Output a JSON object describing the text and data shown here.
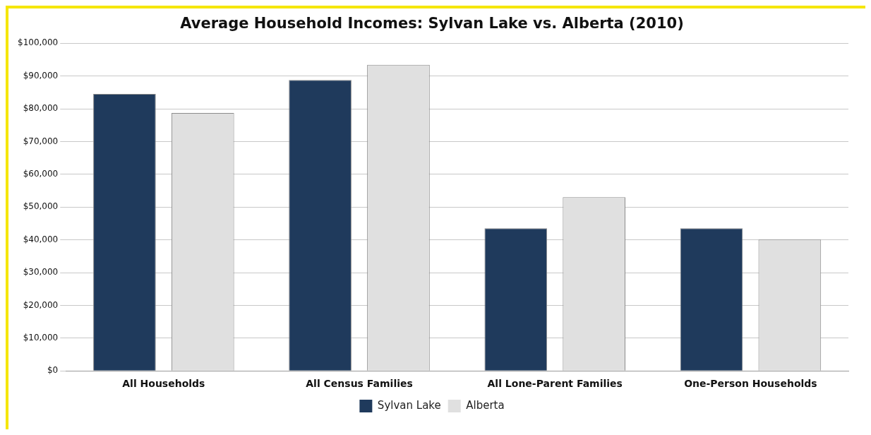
{
  "chart_data": {
    "type": "bar",
    "title": "Average Household Incomes: Sylvan Lake vs. Alberta (2010)",
    "categories": [
      "All Households",
      "All Census Families",
      "All Lone-Parent Families",
      "One-Person Households"
    ],
    "series": [
      {
        "name": "Sylvan Lake",
        "color": "#1f3a5c",
        "values": [
          84500,
          88800,
          43500,
          43500
        ]
      },
      {
        "name": "Alberta",
        "color": "#e0e0e0",
        "values": [
          78700,
          93400,
          53000,
          40100
        ]
      }
    ],
    "ylim": [
      0,
      100000
    ],
    "yticks": [
      {
        "value": 0,
        "label": "$0"
      },
      {
        "value": 10000,
        "label": "$10,000"
      },
      {
        "value": 20000,
        "label": "$20,000"
      },
      {
        "value": 30000,
        "label": "$30,000"
      },
      {
        "value": 40000,
        "label": "$40,000"
      },
      {
        "value": 50000,
        "label": "$50,000"
      },
      {
        "value": 60000,
        "label": "$60,000"
      },
      {
        "value": 70000,
        "label": "$70,000"
      },
      {
        "value": 80000,
        "label": "$80,000"
      },
      {
        "value": 90000,
        "label": "$90,000"
      },
      {
        "value": 100000,
        "label": "$100,000"
      }
    ],
    "grid": "y",
    "legend": "bottom"
  }
}
